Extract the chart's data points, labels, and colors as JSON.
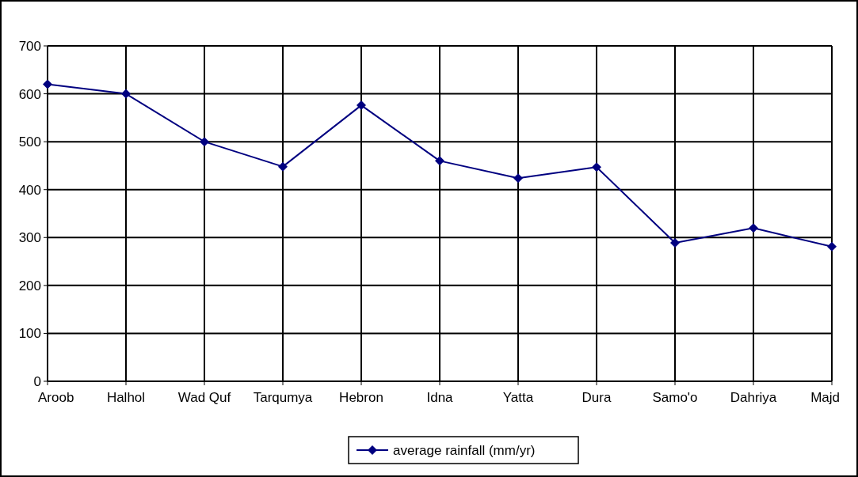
{
  "chart_data": {
    "type": "line",
    "categories": [
      "Aroob",
      "Halhol",
      "Wad Quf",
      "Tarqumya",
      "Hebron",
      "Idna",
      "Yatta",
      "Dura",
      "Samo'o",
      "Dahriya",
      "Majd"
    ],
    "series": [
      {
        "name": "average rainfall (mm/yr)",
        "color": "#000080",
        "values": [
          620,
          600,
          500,
          448,
          576,
          460,
          424,
          447,
          289,
          320,
          281
        ]
      }
    ],
    "ylim": [
      0,
      700
    ],
    "yticks": [
      0,
      100,
      200,
      300,
      400,
      500,
      600,
      700
    ],
    "grid": true,
    "legend": "bottom",
    "marker": "diamond",
    "line_style": "solid"
  }
}
